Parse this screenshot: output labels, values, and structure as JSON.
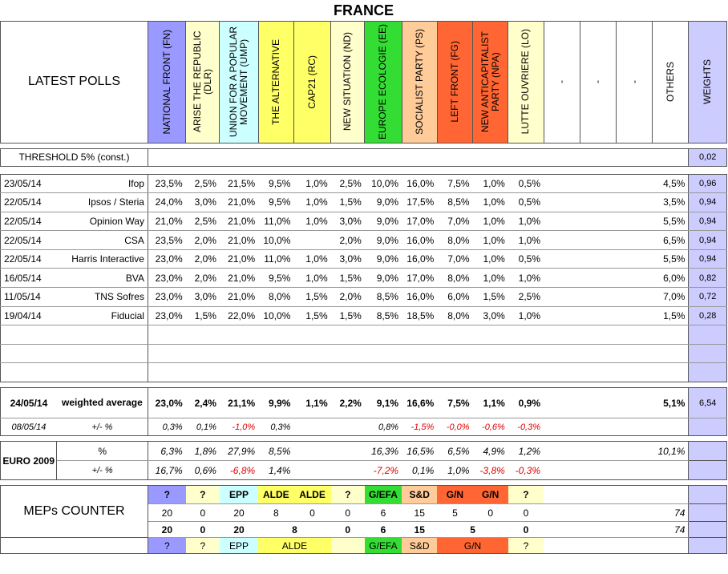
{
  "title": "FRANCE",
  "header_label": "LATEST POLLS",
  "weights_label": "WEIGHTS",
  "parties": [
    {
      "name": "NATIONAL FRONT (FN)",
      "color": "#9999ff"
    },
    {
      "name": "ARISE THE REPUBLIC (DLR)",
      "color": "#ffffcc"
    },
    {
      "name": "UNION FOR A POPULAR MOVEMENT (UMP)",
      "color": "#ccffff"
    },
    {
      "name": "THE ALTERNATIVE",
      "color": "#ffff66"
    },
    {
      "name": "CAP21 (RC)",
      "color": "#ffff66"
    },
    {
      "name": "NEW SITUATION (ND)",
      "color": "#ffffcc"
    },
    {
      "name": "EUROPE ECOLOGIE (EE)",
      "color": "#33dd33"
    },
    {
      "name": "SOCIALIST PARTY (PS)",
      "color": "#ffcc99"
    },
    {
      "name": "LEFT FRONT (FG)",
      "color": "#ff6633"
    },
    {
      "name": "NEW ANTICAPITALIST PARTY (NPA)",
      "color": "#ff6633"
    },
    {
      "name": "LUTTE OUVRIERE (LO)",
      "color": "#ffffcc"
    },
    {
      "name": "-",
      "color": "#ffffff"
    },
    {
      "name": "-",
      "color": "#ffffff"
    },
    {
      "name": "-",
      "color": "#ffffff"
    },
    {
      "name": "OTHERS",
      "color": "#ffffff"
    }
  ],
  "threshold": {
    "label": "THRESHOLD 5% (const.)",
    "weight": "0,02"
  },
  "polls": [
    {
      "date": "23/05/14",
      "pollster": "Ifop",
      "values": [
        "23,5%",
        "2,5%",
        "21,5%",
        "9,5%",
        "1,0%",
        "2,5%",
        "10,0%",
        "16,0%",
        "7,5%",
        "1,0%",
        "0,5%",
        "",
        "",
        "",
        "4,5%"
      ],
      "weight": "0,96"
    },
    {
      "date": "22/05/14",
      "pollster": "Ipsos / Steria",
      "values": [
        "24,0%",
        "3,0%",
        "21,0%",
        "9,5%",
        "1,0%",
        "1,5%",
        "9,0%",
        "17,5%",
        "8,5%",
        "1,0%",
        "0,5%",
        "",
        "",
        "",
        "3,5%"
      ],
      "weight": "0,94"
    },
    {
      "date": "22/05/14",
      "pollster": "Opinion Way",
      "values": [
        "21,0%",
        "2,5%",
        "21,0%",
        "11,0%",
        "1,0%",
        "3,0%",
        "9,0%",
        "17,0%",
        "7,0%",
        "1,0%",
        "1,0%",
        "",
        "",
        "",
        "5,5%"
      ],
      "weight": "0,94"
    },
    {
      "date": "22/05/14",
      "pollster": "CSA",
      "values": [
        "23,5%",
        "2,0%",
        "21,0%",
        "10,0%",
        "",
        "2,0%",
        "9,0%",
        "16,0%",
        "8,0%",
        "1,0%",
        "1,0%",
        "",
        "",
        "",
        "6,5%"
      ],
      "weight": "0,94"
    },
    {
      "date": "22/05/14",
      "pollster": "Harris Interactive",
      "values": [
        "23,0%",
        "2,0%",
        "21,0%",
        "11,0%",
        "1,0%",
        "3,0%",
        "9,0%",
        "16,0%",
        "7,0%",
        "1,0%",
        "0,5%",
        "",
        "",
        "",
        "5,5%"
      ],
      "weight": "0,94"
    },
    {
      "date": "16/05/14",
      "pollster": "BVA",
      "values": [
        "23,0%",
        "2,0%",
        "21,0%",
        "9,5%",
        "1,0%",
        "1,5%",
        "9,0%",
        "17,0%",
        "8,0%",
        "1,0%",
        "1,0%",
        "",
        "",
        "",
        "6,0%"
      ],
      "weight": "0,82"
    },
    {
      "date": "11/05/14",
      "pollster": "TNS Sofres",
      "values": [
        "23,0%",
        "3,0%",
        "21,0%",
        "8,0%",
        "1,5%",
        "2,0%",
        "8,5%",
        "16,0%",
        "6,0%",
        "1,5%",
        "2,5%",
        "",
        "",
        "",
        "7,0%"
      ],
      "weight": "0,72"
    },
    {
      "date": "19/04/14",
      "pollster": "Fiducial",
      "values": [
        "23,0%",
        "1,5%",
        "22,0%",
        "10,0%",
        "1,5%",
        "1,5%",
        "8,5%",
        "18,5%",
        "8,0%",
        "3,0%",
        "1,0%",
        "",
        "",
        "",
        "1,5%"
      ],
      "weight": "0,28"
    }
  ],
  "weighted": {
    "date": "24/05/14",
    "label": "weighted average",
    "values": [
      "23,0%",
      "2,4%",
      "21,1%",
      "9,9%",
      "1,1%",
      "2,2%",
      "9,1%",
      "16,6%",
      "7,5%",
      "1,1%",
      "0,9%",
      "",
      "",
      "",
      "5,1%"
    ],
    "weight": "6,54",
    "prev_date": "08/05/14",
    "delta_label": "+/- %",
    "delta": [
      "0,3%",
      "0,1%",
      "-1,0%",
      "0,3%",
      "",
      "",
      "0,8%",
      "-1,5%",
      "-0,0%",
      "-0,6%",
      "-0,3%",
      "",
      "",
      "",
      ""
    ]
  },
  "euro2009": {
    "label": "EURO 2009",
    "pct_label": "%",
    "values": [
      "6,3%",
      "1,8%",
      "27,9%",
      "8,5%",
      "",
      "",
      "16,3%",
      "16,5%",
      "6,5%",
      "4,9%",
      "1,2%",
      "",
      "",
      "",
      "10,1%"
    ],
    "delta_label": "+/- %",
    "delta": [
      "16,7%",
      "0,6%",
      "-6,8%",
      "1,4%",
      "",
      "",
      "-7,2%",
      "0,1%",
      "1,0%",
      "-3,8%",
      "-0,3%",
      "",
      "",
      "",
      ""
    ]
  },
  "meps": {
    "label": "MEPs COUNTER",
    "groups": [
      "?",
      "?",
      "EPP",
      "ALDE",
      "ALDE",
      "?",
      "G/EFA",
      "S&D",
      "G/N",
      "G/N",
      "?"
    ],
    "counts": [
      "20",
      "0",
      "20",
      "8",
      "0",
      "0",
      "6",
      "15",
      "5",
      "0",
      "0"
    ],
    "total": "74",
    "merged": [
      {
        "label": "?",
        "count": "20"
      },
      {
        "label": "?",
        "count": "0"
      },
      {
        "label": "EPP",
        "count": "20"
      },
      {
        "label": "ALDE",
        "count": "8"
      },
      {
        "label": "",
        "count": "0"
      },
      {
        "label": "G/EFA",
        "count": "6"
      },
      {
        "label": "S&D",
        "count": "15"
      },
      {
        "label": "G/N",
        "count": "5"
      },
      {
        "label": "?",
        "count": "0"
      }
    ],
    "merged_total": "74"
  }
}
